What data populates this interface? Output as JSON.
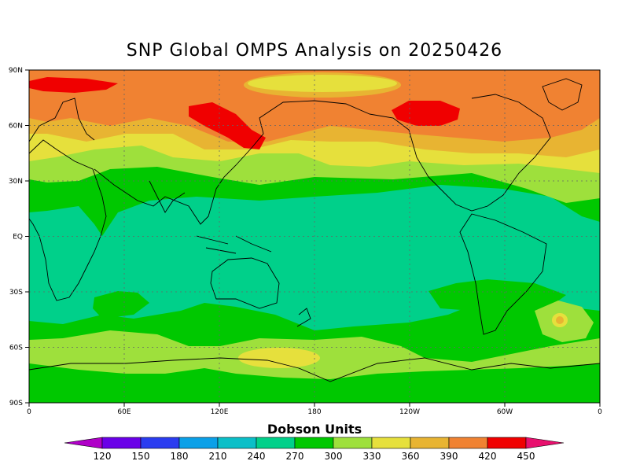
{
  "title": "SNP Global OMPS Analysis on 20250426",
  "lat_ticks": [
    "90N",
    "60N",
    "30N",
    "EQ",
    "30S",
    "60S",
    "90S"
  ],
  "lon_ticks": [
    "0",
    "60E",
    "120E",
    "180",
    "120W",
    "60W",
    "0"
  ],
  "colorbar": {
    "title": "Dobson Units",
    "labels": [
      "120",
      "150",
      "180",
      "210",
      "240",
      "270",
      "300",
      "330",
      "360",
      "390",
      "420",
      "450"
    ],
    "colors": [
      "#a020f0",
      "#6a00e8",
      "#2a3cf0",
      "#0aa0e8",
      "#0abfc8",
      "#00d08a",
      "#00c800",
      "#9ee03c",
      "#e6e03c",
      "#e8b432",
      "#f08232",
      "#f00000"
    ],
    "under_color": "#b000c8",
    "over_color": "#e8106e"
  },
  "colors": {
    "red": "#f00000",
    "orange": "#f08232",
    "gold": "#e8b432",
    "yellow": "#e6e03c",
    "yellowgreen": "#9ee03c",
    "green": "#00c800",
    "teal": "#00d08a"
  }
}
